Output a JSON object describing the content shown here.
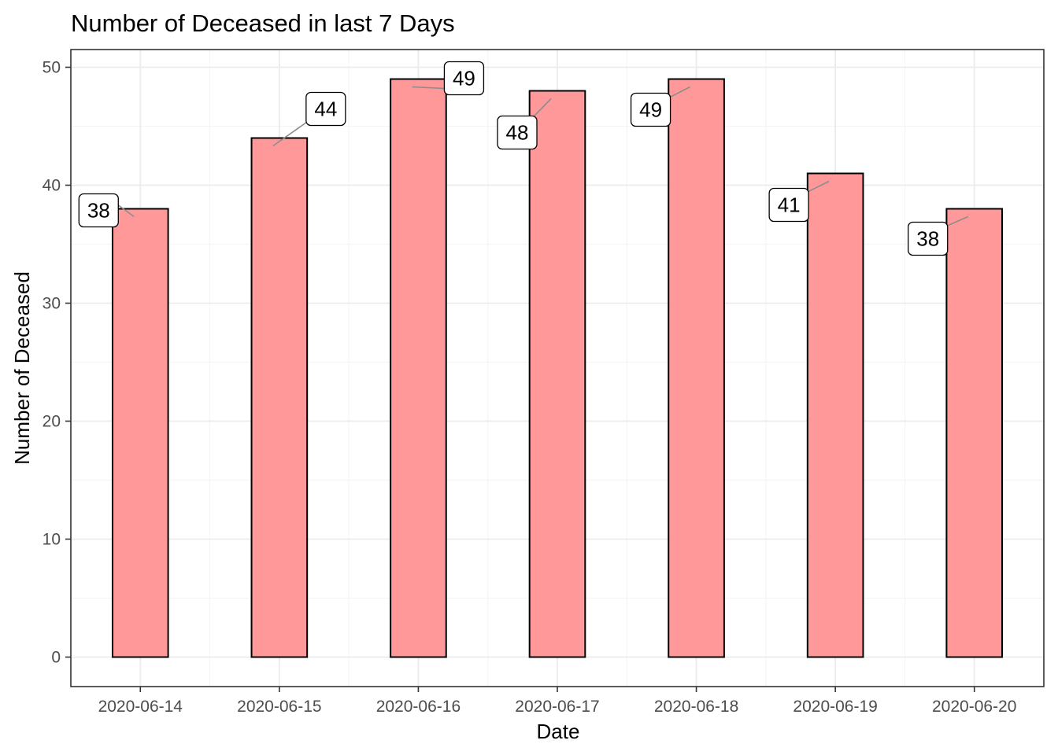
{
  "chart_data": {
    "type": "bar",
    "title": "Number of Deceased in last 7 Days",
    "xlabel": "Date",
    "ylabel": "Number of Deceased",
    "categories": [
      "2020-06-14",
      "2020-06-15",
      "2020-06-16",
      "2020-06-17",
      "2020-06-18",
      "2020-06-19",
      "2020-06-20"
    ],
    "values": [
      38,
      44,
      49,
      48,
      49,
      41,
      38
    ],
    "data_labels": [
      "38",
      "44",
      "49",
      "48",
      "49",
      "41",
      "38"
    ],
    "ylim": [
      -2.5,
      51.5
    ],
    "yticks": [
      0,
      10,
      20,
      30,
      40,
      50
    ],
    "grid": true,
    "colors": {
      "bar_fill": "#ff9999",
      "bar_stroke": "#000000",
      "panel_border": "#333333",
      "grid_major": "#ebebeb",
      "grid_minor": "#f5f5f5",
      "leader_line": "#8c8c8c"
    }
  }
}
